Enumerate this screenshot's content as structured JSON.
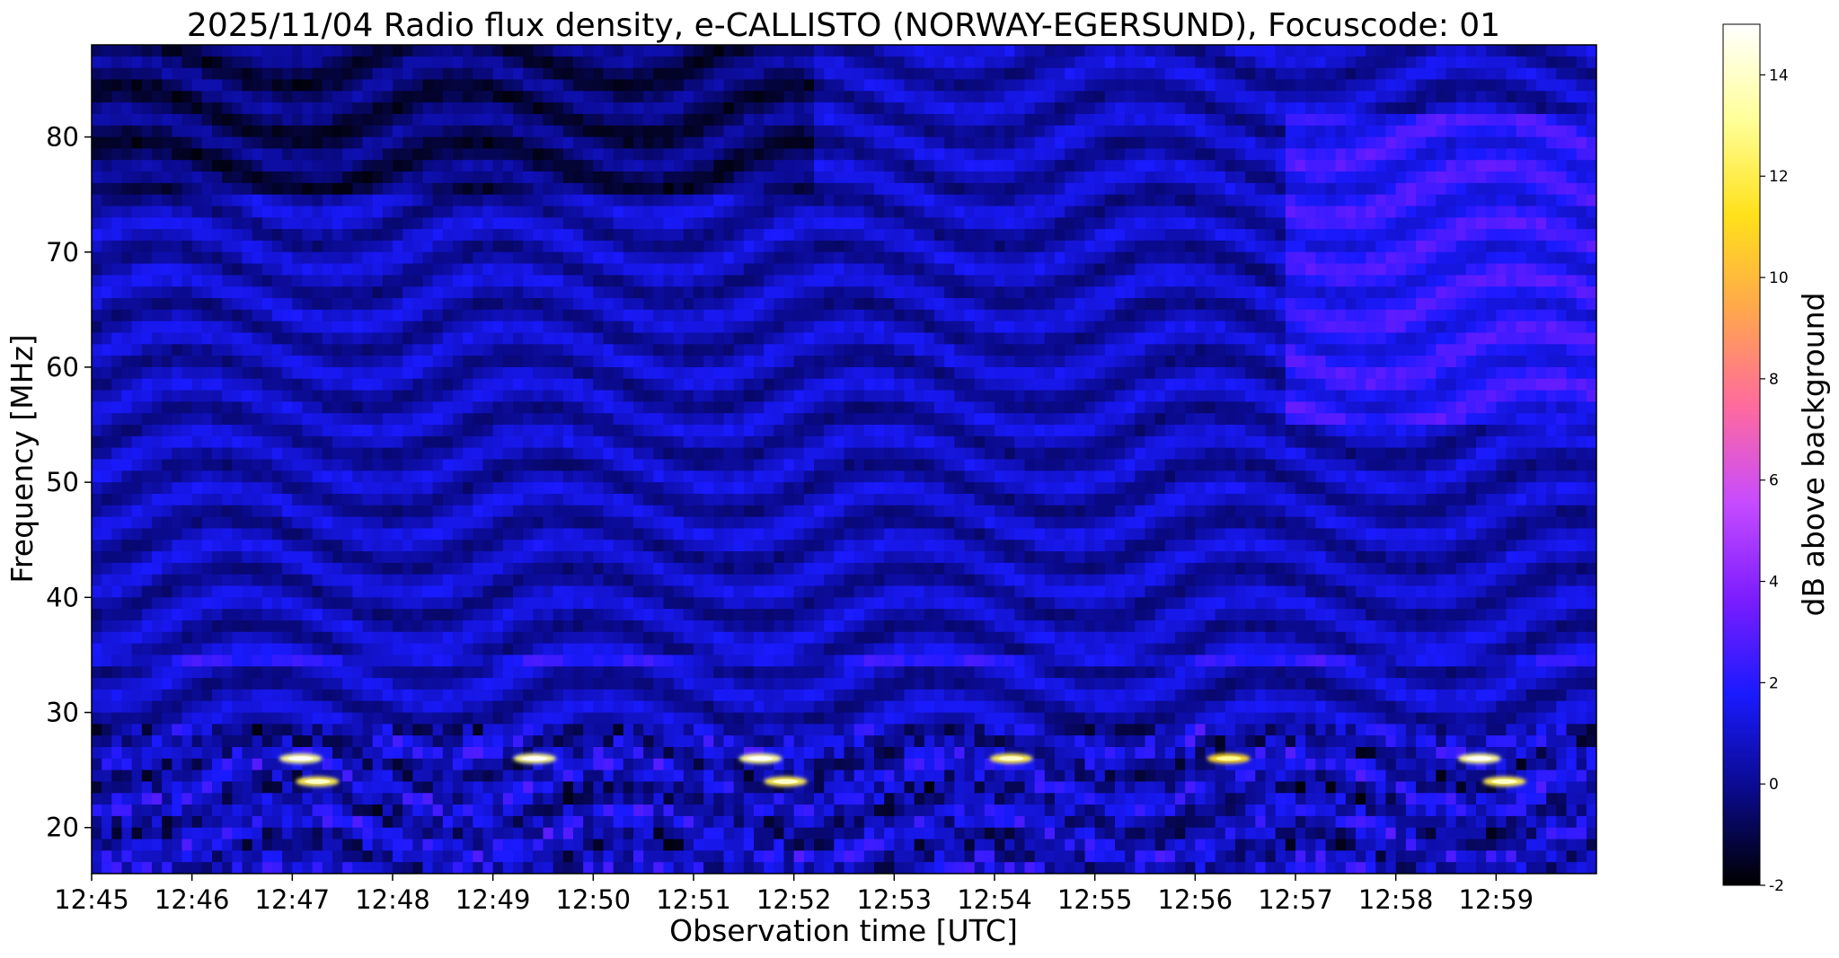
{
  "chart_data": {
    "type": "heatmap",
    "title": "2025/11/04  Radio flux density, e-CALLISTO (NORWAY-EGERSUND), Focuscode: 01",
    "xlabel": "Observation time [UTC]",
    "ylabel": "Frequency [MHz]",
    "colorbar_label": "dB above background",
    "x_ticks": [
      "12:45",
      "12:46",
      "12:47",
      "12:48",
      "12:49",
      "12:50",
      "12:51",
      "12:52",
      "12:53",
      "12:54",
      "12:55",
      "12:56",
      "12:57",
      "12:58",
      "12:59"
    ],
    "x_range": [
      "12:45",
      "13:00"
    ],
    "y_ticks": [
      20,
      30,
      40,
      50,
      60,
      70,
      80
    ],
    "y_range": [
      16,
      88
    ],
    "colorbar_ticks": [
      -2,
      0,
      2,
      4,
      6,
      8,
      10,
      12,
      14
    ],
    "colorbar_range": [
      -2,
      15
    ],
    "colormap": "gnuplot2",
    "colormap_stops": [
      "#000000",
      "#0a0a8c",
      "#1a1aff",
      "#7c1dff",
      "#c64bff",
      "#ff6a9e",
      "#ffa64d",
      "#ffe11a",
      "#ffff99",
      "#ffffff"
    ],
    "bursts": [
      {
        "time": "12:47:05",
        "freq_mhz": 26,
        "db": 13
      },
      {
        "time": "12:47:15",
        "freq_mhz": 24,
        "db": 12
      },
      {
        "time": "12:49:25",
        "freq_mhz": 26,
        "db": 13
      },
      {
        "time": "12:51:40",
        "freq_mhz": 26,
        "db": 13
      },
      {
        "time": "12:51:55",
        "freq_mhz": 24,
        "db": 12
      },
      {
        "time": "12:54:10",
        "freq_mhz": 26,
        "db": 12
      },
      {
        "time": "12:56:20",
        "freq_mhz": 26,
        "db": 11
      },
      {
        "time": "12:58:50",
        "freq_mhz": 26,
        "db": 13
      },
      {
        "time": "12:59:05",
        "freq_mhz": 24,
        "db": 12
      }
    ]
  }
}
